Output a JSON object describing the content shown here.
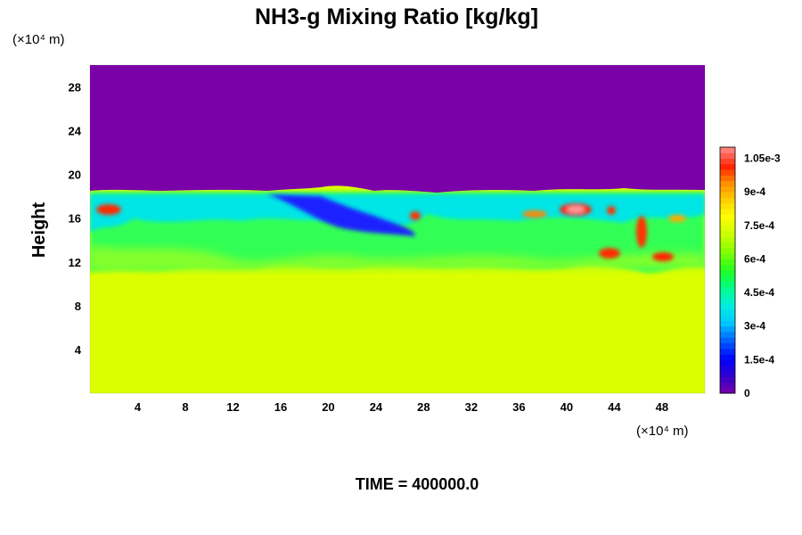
{
  "chart_data": {
    "type": "heatmap",
    "title": "NH3-g Mixing Ratio [kg/kg]",
    "xlabel": "",
    "ylabel": "Height",
    "x_unit": "(×10⁴ m)",
    "y_unit": "(×10⁴ m)",
    "xlim": [
      0,
      51.6
    ],
    "ylim": [
      0,
      30
    ],
    "x_ticks": [
      "4",
      "8",
      "12",
      "16",
      "20",
      "24",
      "28",
      "32",
      "36",
      "40",
      "44",
      "48"
    ],
    "x_tick_values": [
      4,
      8,
      12,
      16,
      20,
      24,
      28,
      32,
      36,
      40,
      44,
      48
    ],
    "y_ticks": [
      "4",
      "8",
      "12",
      "16",
      "20",
      "24",
      "28"
    ],
    "y_tick_values": [
      4,
      8,
      12,
      16,
      20,
      24,
      28
    ],
    "colorbar": {
      "min": 0,
      "max": 0.0011,
      "tick_labels": [
        "0",
        "1.5e-4",
        "3e-4",
        "4.5e-4",
        "6e-4",
        "7.5e-4",
        "9e-4",
        "1.05e-3"
      ],
      "tick_values": [
        0,
        0.00015,
        0.0003,
        0.00045,
        0.0006,
        0.00075,
        0.0009,
        0.00105
      ]
    },
    "field_description_values": {
      "upper_uniform_value": 0,
      "lower_uniform_value": 0.00078,
      "interface_height_approx": 18
    },
    "footer": "TIME = 400000.0"
  },
  "colors": {
    "background": "#ffffff",
    "low": "#7a00a8",
    "high": "#ff8c8c"
  }
}
